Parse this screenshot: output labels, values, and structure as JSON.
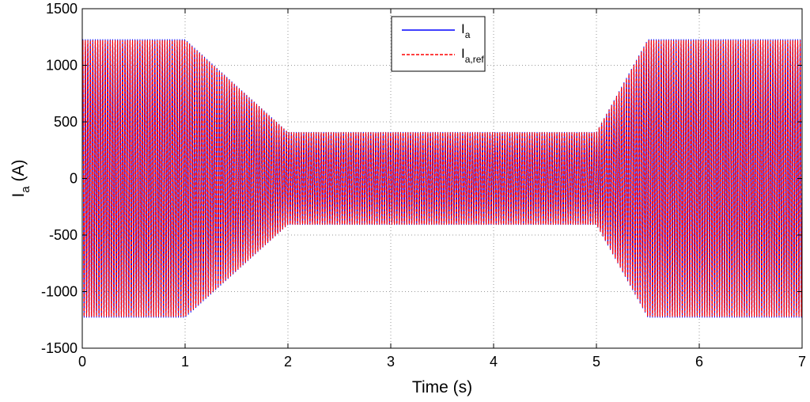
{
  "chart_data": {
    "type": "line",
    "title": "",
    "xlabel": "Time (s)",
    "ylabel": {
      "main": "I",
      "sub": "a",
      "unit": " (A)"
    },
    "xlim": [
      0,
      7
    ],
    "ylim": [
      -1500,
      1500
    ],
    "xticks": [
      0,
      1,
      2,
      3,
      4,
      5,
      6,
      7
    ],
    "yticks": [
      -1500,
      -1000,
      -500,
      0,
      500,
      1000,
      1500
    ],
    "grid": true,
    "legend_position": "top-center",
    "series": [
      {
        "name": "I",
        "sub": "a",
        "color": "#0000ff",
        "style": "solid",
        "description": "oscillating phase current",
        "envelope_t": [
          0,
          1,
          2,
          5,
          5.5,
          7
        ],
        "envelope_amp": [
          1230,
          1230,
          410,
          410,
          1230,
          1230
        ]
      },
      {
        "name": "I",
        "sub": "a,ref",
        "color": "#ff0000",
        "style": "dashed",
        "description": "reference current",
        "envelope_t": [
          0,
          1,
          2,
          5,
          5.5,
          7
        ],
        "envelope_amp": [
          1230,
          1230,
          410,
          410,
          1230,
          1230
        ]
      }
    ],
    "oscillation_cycles": 290
  }
}
